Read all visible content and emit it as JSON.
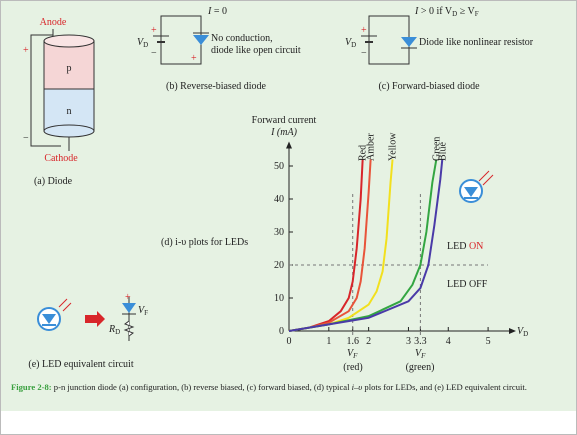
{
  "signs": {
    "plus": "+",
    "minus": "−"
  },
  "a": {
    "anode": "Anode",
    "cathode": "Cathode",
    "p": "p",
    "n": "n",
    "caption": "(a) Diode"
  },
  "b": {
    "current": {
      "main": "I",
      "rest": " = 0"
    },
    "vd": {
      "main": "V",
      "sub": "D"
    },
    "line1": "No conduction,",
    "line2": "diode like open circuit",
    "caption": "(b) Reverse-biased diode"
  },
  "c": {
    "current": {
      "main": "I",
      "rest": " > 0 if V",
      "sub1": "D",
      "mid": " ≥ V",
      "sub2": "F"
    },
    "vd": {
      "main": "V",
      "sub": "D"
    },
    "line1": "Diode like nonlinear resistor",
    "caption": "(c) Forward-biased diode"
  },
  "d": {
    "caption": "(d) i-υ plots for LEDs"
  },
  "e": {
    "vf": {
      "main": "V",
      "sub": "F"
    },
    "rd": {
      "main": "R",
      "sub": "D"
    },
    "caption": "(e) LED equivalent circuit"
  },
  "chart_data": {
    "type": "line",
    "y_label_1": "Forward current",
    "y_label_2": "I (mA)",
    "x_label": {
      "main": "V",
      "sub": "D"
    },
    "xlim": [
      0,
      5.5
    ],
    "ylim": [
      0,
      55
    ],
    "xticks": [
      0,
      1,
      1.6,
      2,
      3,
      3.3,
      4,
      5
    ],
    "yticks": [
      0,
      10,
      20,
      30,
      40,
      50
    ],
    "series": [
      {
        "name": "Red",
        "color": "#d8262a",
        "x": [
          0,
          0.5,
          1,
          1.3,
          1.5,
          1.6,
          1.7,
          1.8,
          1.85
        ],
        "values": [
          0,
          1,
          3,
          6,
          10,
          15,
          25,
          40,
          52
        ]
      },
      {
        "name": "Amber",
        "color": "#e8543a",
        "x": [
          0,
          0.5,
          1,
          1.5,
          1.7,
          1.8,
          1.9,
          2.0,
          2.05
        ],
        "values": [
          0,
          1,
          2.5,
          6,
          10,
          15,
          25,
          42,
          52
        ]
      },
      {
        "name": "Yellow",
        "color": "#f2e01e",
        "x": [
          0,
          1,
          1.5,
          2,
          2.2,
          2.35,
          2.45,
          2.55,
          2.6
        ],
        "values": [
          0,
          2,
          4,
          8,
          12,
          18,
          28,
          45,
          52
        ]
      },
      {
        "name": "Green",
        "color": "#33a642",
        "x": [
          0,
          1,
          2,
          2.8,
          3.1,
          3.3,
          3.45,
          3.6,
          3.7
        ],
        "values": [
          0,
          2,
          4.5,
          9,
          14,
          20,
          30,
          45,
          52
        ]
      },
      {
        "name": "Blue",
        "color": "#4a3aa8",
        "x": [
          0,
          1,
          2,
          3,
          3.3,
          3.5,
          3.65,
          3.8,
          3.85
        ],
        "values": [
          0,
          2,
          4,
          9,
          13,
          20,
          32,
          46,
          52
        ]
      }
    ],
    "reference_y": 20,
    "reference_x": [
      1.6,
      3.3
    ],
    "on_label": {
      "main": "LED ",
      "accent": "ON"
    },
    "off_label": "LED OFF",
    "vf_red": {
      "main": "V",
      "sub": "F",
      "note": "(red)"
    },
    "vf_green": {
      "main": "V",
      "sub": "F",
      "note": "(green)"
    }
  },
  "caption": {
    "label": "Figure 2-8:",
    "p1": " p-n junction diode (a) configuration, (b) reverse biased, (c) forward biased, (d) typical ",
    "italic": "i–υ",
    "p2": " plots for LEDs, and (e) LED equivalent circuit."
  }
}
